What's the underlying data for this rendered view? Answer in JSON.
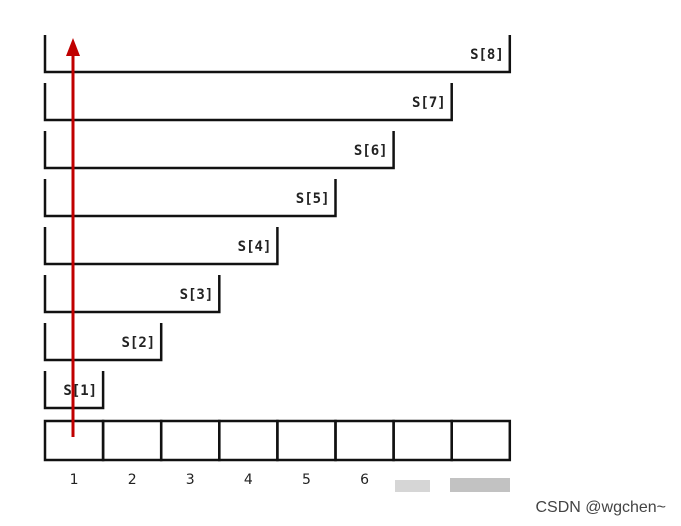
{
  "brackets": [
    "S[1]",
    "S[2]",
    "S[3]",
    "S[4]",
    "S[5]",
    "S[6]",
    "S[7]",
    "S[8]"
  ],
  "cell_labels": [
    "1",
    "2",
    "3",
    "4",
    "5",
    "6"
  ],
  "watermark": "CSDN @wgchen~"
}
